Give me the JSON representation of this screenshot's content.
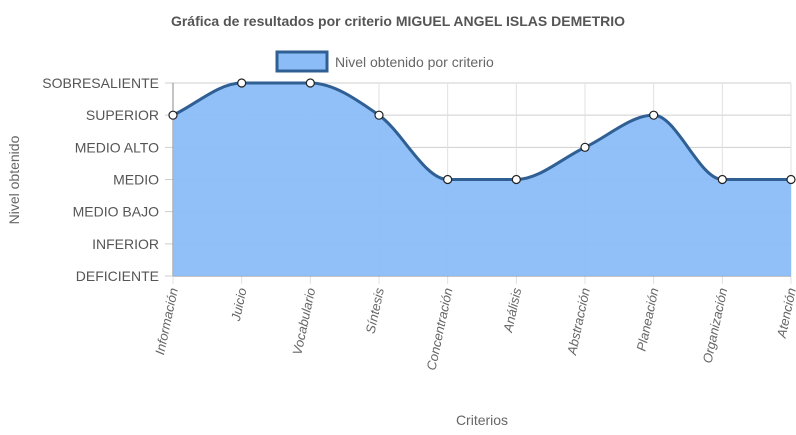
{
  "chart_data": {
    "type": "area",
    "title": "Gráfica de resultados por criterio MIGUEL ANGEL ISLAS DEMETRIO",
    "xlabel": "Criterios",
    "ylabel": "Nivel obtenido",
    "legend": {
      "position": "top",
      "label": "Nivel obtenido por criterio"
    },
    "y_levels": [
      "DEFICIENTE",
      "INFERIOR",
      "MEDIO BAJO",
      "MEDIO",
      "MEDIO ALTO",
      "SUPERIOR",
      "SOBRESALIENTE"
    ],
    "ylim": [
      0,
      6
    ],
    "grid": true,
    "categories": [
      "Información",
      "Juicio",
      "Vocabulario",
      "Síntesis",
      "Concentración",
      "Análisis",
      "Abstracción",
      "Planeación",
      "Organización",
      "Atención"
    ],
    "series": [
      {
        "name": "Nivel obtenido por criterio",
        "values": [
          5,
          6,
          6,
          5,
          3,
          3,
          4,
          5,
          3,
          3
        ],
        "color": "#2f5f93",
        "fill": "#8bbcf8"
      }
    ]
  }
}
